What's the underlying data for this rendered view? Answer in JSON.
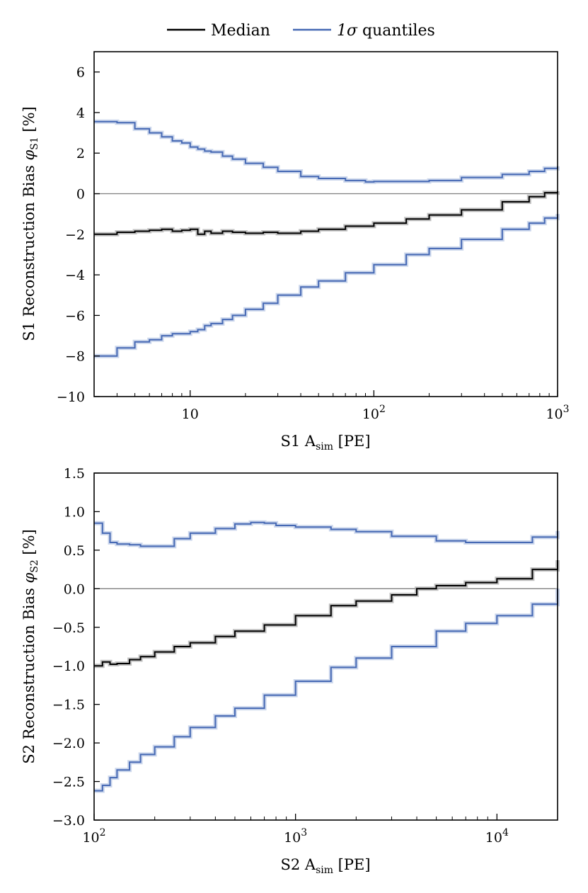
{
  "legend": {
    "median_label": "Median",
    "quantile_label_symbol": "1σ",
    "quantile_label_text": " quantiles"
  },
  "colors": {
    "median": "#000000",
    "quantile": "#4669b4",
    "quantile_band": "#b7c6e4",
    "median_band": "#a8a8a8",
    "zero_line": "#808080"
  },
  "chart_data": [
    {
      "type": "line",
      "step": true,
      "title": "",
      "xscale": "log",
      "xlim": [
        3,
        1000
      ],
      "ylim": [
        -10,
        7
      ],
      "xlabel_main": "S1 A",
      "xlabel_sub": "sim",
      "xlabel_tail": " [PE]",
      "ylabel_main": "S1 Reconstruction Bias ",
      "ylabel_symbol": "φ",
      "ylabel_sub": "S1",
      "ylabel_tail": " [%]",
      "yticks": [
        -10,
        -8,
        -6,
        -4,
        -2,
        0,
        2,
        4,
        6
      ],
      "ytick_labels": [
        "−10",
        "−8",
        "−6",
        "−4",
        "−2",
        "0",
        "2",
        "4",
        "6"
      ],
      "xticks": [
        {
          "value": 10,
          "base": "10",
          "exp": ""
        },
        {
          "value": 100,
          "base": "10",
          "exp": "2"
        },
        {
          "value": 1000,
          "base": "10",
          "exp": "3"
        }
      ],
      "series": [
        {
          "name": "Median",
          "role": "median",
          "x": [
            3,
            4,
            5,
            6,
            7,
            8,
            9,
            10,
            11,
            12,
            13,
            15,
            17,
            20,
            25,
            30,
            40,
            50,
            70,
            100,
            150,
            200,
            300,
            500,
            700,
            850,
            1000
          ],
          "y": [
            -2.0,
            -1.9,
            -1.85,
            -1.8,
            -1.75,
            -1.85,
            -1.8,
            -1.75,
            -2.0,
            -1.85,
            -1.95,
            -1.85,
            -1.9,
            -1.95,
            -1.9,
            -1.95,
            -1.85,
            -1.75,
            -1.6,
            -1.45,
            -1.25,
            -1.05,
            -0.8,
            -0.4,
            -0.15,
            0.05,
            0.12
          ]
        },
        {
          "name": "1σ quantiles (upper)",
          "role": "quantile",
          "x": [
            3,
            4,
            5,
            6,
            7,
            8,
            9,
            10,
            11,
            12,
            13,
            15,
            17,
            20,
            25,
            30,
            40,
            50,
            70,
            90,
            100,
            150,
            200,
            300,
            500,
            700,
            850,
            1000
          ],
          "y": [
            3.55,
            3.5,
            3.2,
            3.0,
            2.8,
            2.6,
            2.5,
            2.3,
            2.2,
            2.1,
            2.05,
            1.85,
            1.7,
            1.5,
            1.3,
            1.1,
            0.85,
            0.75,
            0.65,
            0.58,
            0.6,
            0.6,
            0.65,
            0.8,
            0.95,
            1.1,
            1.25,
            1.35
          ]
        },
        {
          "name": "1σ quantiles (lower)",
          "role": "quantile",
          "x": [
            3,
            4,
            5,
            6,
            7,
            8,
            9,
            10,
            11,
            12,
            13,
            15,
            17,
            20,
            25,
            30,
            40,
            50,
            70,
            100,
            150,
            200,
            300,
            500,
            700,
            850,
            1000
          ],
          "y": [
            -8.0,
            -7.6,
            -7.3,
            -7.2,
            -7.0,
            -6.9,
            -6.9,
            -6.8,
            -6.7,
            -6.5,
            -6.4,
            -6.2,
            -6.0,
            -5.7,
            -5.4,
            -5.0,
            -4.6,
            -4.3,
            -3.9,
            -3.5,
            -3.0,
            -2.7,
            -2.25,
            -1.75,
            -1.45,
            -1.2,
            -1.0
          ]
        }
      ]
    },
    {
      "type": "line",
      "step": true,
      "title": "",
      "xscale": "log",
      "xlim": [
        100,
        20000
      ],
      "ylim": [
        -3.0,
        1.5
      ],
      "xlabel_main": "S2 A",
      "xlabel_sub": "sim",
      "xlabel_tail": " [PE]",
      "ylabel_main": "S2 Reconstruction Bias ",
      "ylabel_symbol": "φ",
      "ylabel_sub": "S2",
      "ylabel_tail": " [%]",
      "yticks": [
        -3.0,
        -2.5,
        -2.0,
        -1.5,
        -1.0,
        -0.5,
        0.0,
        0.5,
        1.0,
        1.5
      ],
      "ytick_labels": [
        "−3.0",
        "−2.5",
        "−2.0",
        "−1.5",
        "−1.0",
        "−0.5",
        "0.0",
        "0.5",
        "1.0",
        "1.5"
      ],
      "xticks": [
        {
          "value": 100,
          "base": "10",
          "exp": "2"
        },
        {
          "value": 1000,
          "base": "10",
          "exp": "3"
        },
        {
          "value": 10000,
          "base": "10",
          "exp": "4"
        }
      ],
      "series": [
        {
          "name": "Median",
          "role": "median",
          "x": [
            100,
            110,
            120,
            130,
            150,
            170,
            200,
            250,
            300,
            400,
            500,
            700,
            1000,
            1500,
            2000,
            3000,
            4000,
            5000,
            7000,
            10000,
            15000,
            20000
          ],
          "y": [
            -1.0,
            -0.95,
            -0.98,
            -0.97,
            -0.92,
            -0.88,
            -0.82,
            -0.75,
            -0.7,
            -0.62,
            -0.55,
            -0.47,
            -0.35,
            -0.22,
            -0.16,
            -0.08,
            0.0,
            0.04,
            0.08,
            0.13,
            0.25,
            0.37
          ]
        },
        {
          "name": "1σ quantiles (upper)",
          "role": "quantile",
          "x": [
            100,
            110,
            120,
            130,
            150,
            170,
            200,
            250,
            300,
            400,
            500,
            600,
            700,
            800,
            1000,
            1500,
            2000,
            3000,
            5000,
            7000,
            10000,
            15000,
            20000
          ],
          "y": [
            0.85,
            0.72,
            0.6,
            0.58,
            0.57,
            0.55,
            0.55,
            0.65,
            0.72,
            0.78,
            0.84,
            0.86,
            0.85,
            0.82,
            0.8,
            0.77,
            0.74,
            0.68,
            0.62,
            0.6,
            0.6,
            0.67,
            0.75
          ]
        },
        {
          "name": "1σ quantiles (lower)",
          "role": "quantile",
          "x": [
            100,
            110,
            120,
            130,
            150,
            170,
            200,
            250,
            300,
            400,
            500,
            700,
            1000,
            1500,
            2000,
            3000,
            5000,
            7000,
            10000,
            15000,
            20000
          ],
          "y": [
            -2.62,
            -2.55,
            -2.45,
            -2.35,
            -2.25,
            -2.15,
            -2.05,
            -1.92,
            -1.8,
            -1.65,
            -1.55,
            -1.38,
            -1.2,
            -1.02,
            -0.9,
            -0.75,
            -0.55,
            -0.45,
            -0.35,
            -0.2,
            0.0
          ]
        }
      ]
    }
  ]
}
